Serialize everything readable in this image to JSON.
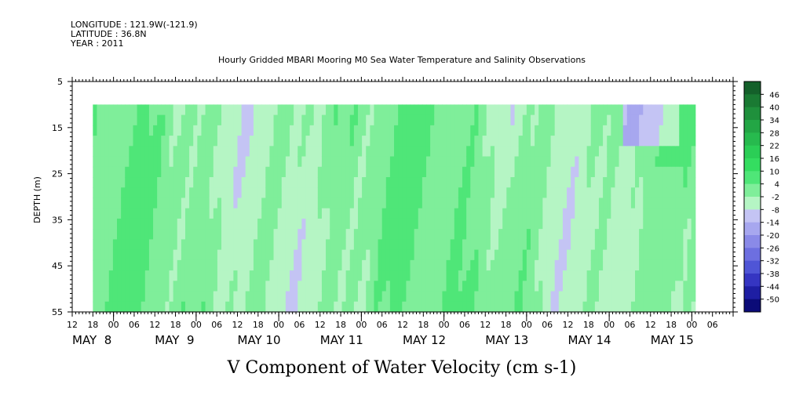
{
  "header": {
    "longitude": "LONGITUDE : 121.9W(-121.9)",
    "latitude": "LATITUDE : 36.8N",
    "year": "YEAR : 2011"
  },
  "chart_data": {
    "type": "heatmap",
    "title": "Hourly Gridded MBARI Mooring M0 Sea Water Temperature and Salinity Observations",
    "bottom_title": "V Component of Water Velocity (cm s-1)",
    "ylabel": "DEPTH (m)",
    "y_tick_labels": [
      "5",
      "15",
      "25",
      "35",
      "45",
      "55"
    ],
    "y_ticks": [
      5,
      15,
      25,
      35,
      45,
      55
    ],
    "ylim": [
      5,
      55
    ],
    "y_inverted": true,
    "data_depth_range": [
      10,
      55
    ],
    "x_hour_labels": [
      "12",
      "18",
      "00",
      "06",
      "12",
      "18",
      "00",
      "06",
      "12",
      "18",
      "00",
      "06",
      "12",
      "18",
      "00",
      "06",
      "12",
      "18",
      "00",
      "06",
      "12",
      "18",
      "00",
      "06",
      "12",
      "18",
      "00",
      "06",
      "12",
      "18",
      "00",
      "06"
    ],
    "x_date_labels": [
      "MAY  8",
      "MAY  9",
      "MAY 10",
      "MAY 11",
      "MAY 12",
      "MAY 13",
      "MAY 14",
      "MAY 15"
    ],
    "x_start_hour": 12,
    "x_hours_total": 192,
    "data_start_hour": 18,
    "data_end_hour": 193,
    "colorbar": {
      "labels": [
        "46",
        "40",
        "34",
        "28",
        "22",
        "16",
        "10",
        "4",
        "-2",
        "-8",
        "-14",
        "-20",
        "-26",
        "-32",
        "-38",
        "-44",
        "-50"
      ],
      "levels": [
        52,
        46,
        40,
        34,
        28,
        22,
        16,
        10,
        4,
        -2,
        -8,
        -14,
        -20,
        -26,
        -32,
        -38,
        -44,
        -50
      ],
      "colors": [
        "#14602a",
        "#1a7a33",
        "#1f903c",
        "#23a645",
        "#27ba4e",
        "#2bce56",
        "#34dd60",
        "#4fe678",
        "#7fee9a",
        "#b5f5c4",
        "#c4c4f4",
        "#a7a7ef",
        "#8a8ae8",
        "#6d6fe0",
        "#4f55d6",
        "#3535c2",
        "#1e1ea3",
        "#0b0b78"
      ]
    },
    "grid": false,
    "legend_position": "right"
  }
}
